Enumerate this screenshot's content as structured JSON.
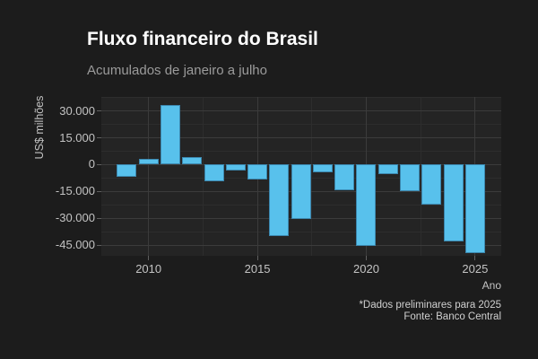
{
  "header": {
    "title": "Fluxo financeiro do Brasil",
    "subtitle": "Acumulados de janeiro a julho"
  },
  "caption": {
    "line1": "*Dados preliminares para 2025",
    "line2": "Fonte: Banco Central"
  },
  "chart_data": {
    "type": "bar",
    "title": "Fluxo financeiro do Brasil",
    "subtitle": "Acumulados de janeiro a julho",
    "xlabel": "Ano",
    "ylabel": "US$ milhões",
    "categories": [
      2009,
      2010,
      2011,
      2012,
      2013,
      2014,
      2015,
      2016,
      2017,
      2018,
      2019,
      2020,
      2021,
      2022,
      2023,
      2024,
      2025
    ],
    "values": [
      -6800,
      3400,
      33500,
      4300,
      -9100,
      -3500,
      -8100,
      -39800,
      -30400,
      -4500,
      -14300,
      -45600,
      -5400,
      -15000,
      -22500,
      -43200,
      -49700
    ],
    "unit": "US$ milhões",
    "xlim": [
      2007.83,
      2026.2
    ],
    "ylim": [
      -51000,
      37850
    ],
    "yticks": [
      {
        "value": 30000,
        "label": "30.000"
      },
      {
        "value": 15000,
        "label": "15.000"
      },
      {
        "value": 0,
        "label": "0"
      },
      {
        "value": -15000,
        "label": "-15.000"
      },
      {
        "value": -30000,
        "label": "-30.000"
      },
      {
        "value": -45000,
        "label": "-45.000"
      }
    ],
    "yticks_minor": [
      37500,
      22500,
      7500,
      -7500,
      -22500,
      -37500
    ],
    "xticks": [
      {
        "value": 2010,
        "label": "2010"
      },
      {
        "value": 2015,
        "label": "2015"
      },
      {
        "value": 2020,
        "label": "2020"
      },
      {
        "value": 2025,
        "label": "2025"
      }
    ],
    "xticks_minor": [
      2012.5,
      2017.5,
      2022.5
    ],
    "grid": true,
    "legend": false,
    "colors": {
      "background": "#1c1c1c",
      "panel": "#242424",
      "bar_fill": "#58c1ec",
      "bar_border": "#3c87ae",
      "grid_major": "#3b3b3b",
      "grid_minor": "#2d2d2d",
      "title": "#ffffff",
      "subtitle": "#9b9b9b",
      "tick_label": "#c3c3c3",
      "caption": "#d0d0d0"
    }
  }
}
